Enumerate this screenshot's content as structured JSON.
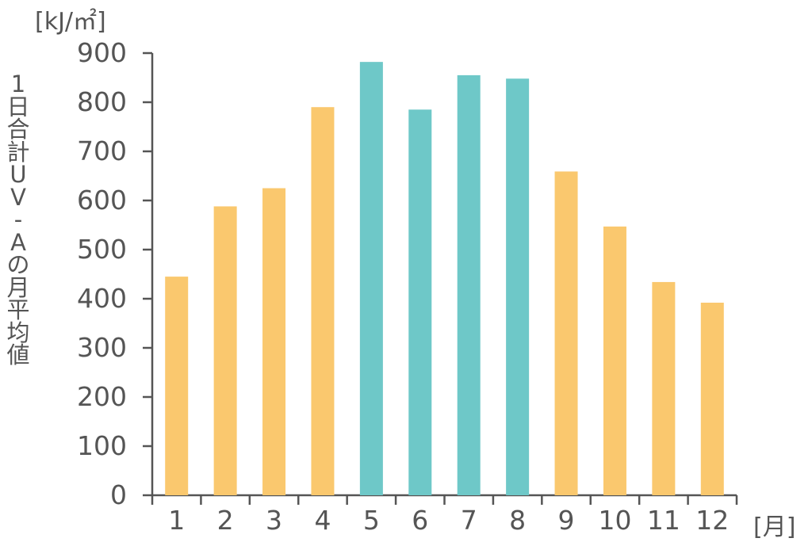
{
  "chart_data": {
    "type": "bar",
    "categories": [
      "1",
      "2",
      "3",
      "4",
      "5",
      "6",
      "7",
      "8",
      "9",
      "10",
      "11",
      "12"
    ],
    "values": [
      445,
      588,
      625,
      790,
      882,
      785,
      855,
      848,
      659,
      547,
      434,
      392
    ],
    "highlight": [
      false,
      false,
      false,
      false,
      true,
      true,
      true,
      true,
      false,
      false,
      false,
      false
    ],
    "colors": {
      "normal": "#FAC86E",
      "highlight": "#6EC8C8",
      "axis": "#555555"
    },
    "ylim": [
      0,
      900
    ],
    "yticks": [
      0,
      100,
      200,
      300,
      400,
      500,
      600,
      700,
      800,
      900
    ],
    "ylabel_chars": [
      "1",
      "日",
      "合",
      "計",
      "U",
      "V",
      "-",
      "A",
      "の",
      "月",
      "平",
      "均",
      "値"
    ],
    "y_unit": "[kJ/㎡]",
    "x_unit": "[月]",
    "grid": false,
    "legend": "none"
  }
}
